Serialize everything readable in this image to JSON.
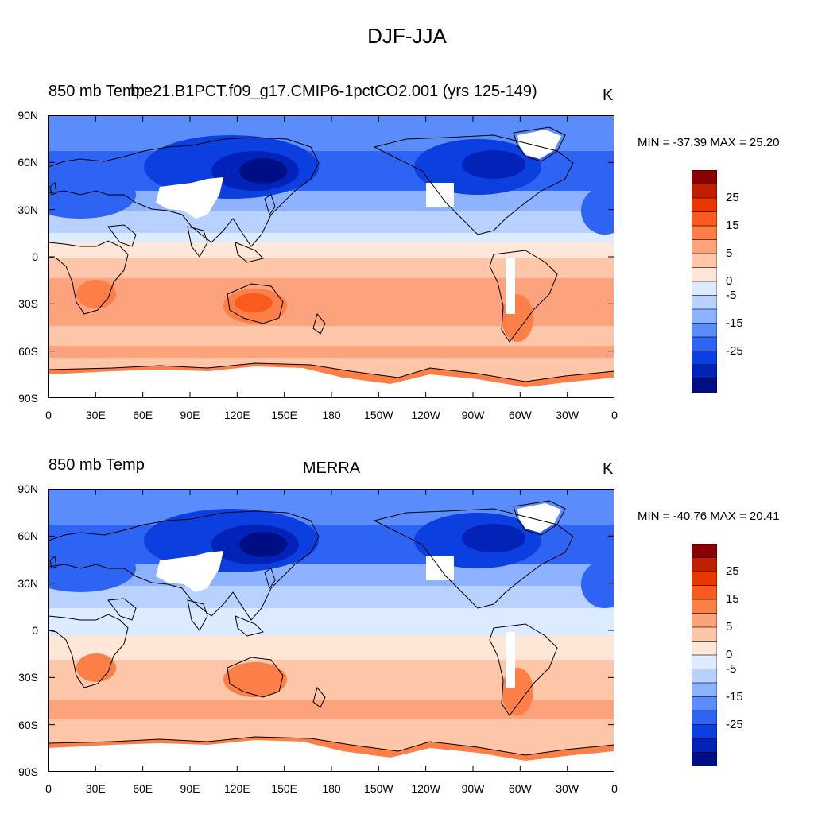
{
  "title": "DJF-JJA",
  "panels": [
    {
      "left_label": "850 mb Temp",
      "center_label": "b.e21.B1PCT.f09_g17.CMIP6-1pctCO2.001 (yrs 125-149)",
      "units": "K",
      "minmax": "MIN = -37.39 MAX =  25.20"
    },
    {
      "left_label": "850 mb Temp",
      "center_label": "MERRA",
      "units": "K",
      "minmax": "MIN = -40.76 MAX =  20.41"
    }
  ],
  "lat_labels": [
    "90N",
    "60N",
    "30N",
    "0",
    "30S",
    "60S",
    "90S"
  ],
  "lon_labels": [
    "0",
    "30E",
    "60E",
    "90E",
    "120E",
    "150E",
    "180",
    "150W",
    "120W",
    "90W",
    "60W",
    "30W",
    "0"
  ],
  "colorbar": {
    "labels": [
      "25",
      "15",
      "5",
      "0",
      "-5",
      "-15",
      "-25"
    ],
    "colors": [
      "#8a0000",
      "#c02000",
      "#e83800",
      "#fa5a1e",
      "#fb7f47",
      "#fca27c",
      "#fdc6a8",
      "#fee7d6",
      "#dcebff",
      "#b8d1ff",
      "#8db2ff",
      "#5a8dfb",
      "#2e64f3",
      "#0b3fe0",
      "#0222b8",
      "#000e85"
    ]
  },
  "map_colors": {
    "ocean_north": "#5a8dfb",
    "ocean_mid_north": "#8db2ff",
    "ocean_subtropic": "#b8d1ff",
    "ocean_equator": "#dcebff",
    "ocean_south": "#fdc6a8",
    "ocean_far_south": "#fca27c",
    "land_warm": "#fb7f47",
    "land_hot": "#fa5a1e",
    "cold_land": "#0b3fe0",
    "coldest": "#000e85",
    "missing": "#ffffff",
    "coast": "#000000"
  }
}
